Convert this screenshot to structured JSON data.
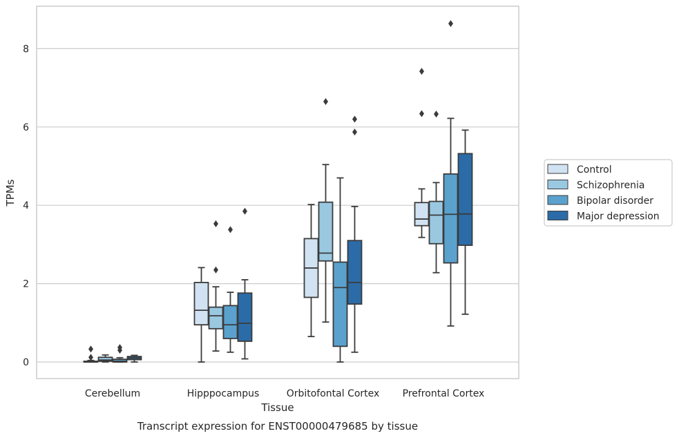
{
  "chart_data": {
    "type": "box",
    "xlabel": "Tissue",
    "ylabel": "TPMs",
    "caption": "Transcript expression for ENST00000479685 by tissue",
    "categories": [
      "Cerebellum",
      "Hipppocampus",
      "Orbitofontal Cortex",
      "Prefrontal Cortex"
    ],
    "ylim": [
      -0.42,
      9.1
    ],
    "yticks": [
      0,
      2,
      4,
      6,
      8
    ],
    "grid": true,
    "legend_position": "right",
    "series": [
      {
        "name": "Control",
        "color": "#d1e2f2",
        "boxes": [
          {
            "whislo": 0.0,
            "q1": 0.0,
            "med": 0.0,
            "q3": 0.02,
            "whishi": 0.04,
            "fliers": [
              0.33,
              0.12
            ]
          },
          {
            "whislo": 0.0,
            "q1": 0.95,
            "med": 1.32,
            "q3": 2.03,
            "whishi": 2.41,
            "fliers": []
          },
          {
            "whislo": 0.65,
            "q1": 1.65,
            "med": 2.4,
            "q3": 3.15,
            "whishi": 4.02,
            "fliers": []
          },
          {
            "whislo": 3.18,
            "q1": 3.48,
            "med": 3.65,
            "q3": 4.07,
            "whishi": 4.42,
            "fliers": [
              7.42,
              6.34
            ]
          }
        ]
      },
      {
        "name": "Schizophrenia",
        "color": "#9ac8e0",
        "boxes": [
          {
            "whislo": 0.0,
            "q1": 0.02,
            "med": 0.05,
            "q3": 0.12,
            "whishi": 0.18,
            "fliers": []
          },
          {
            "whislo": 0.28,
            "q1": 0.85,
            "med": 1.18,
            "q3": 1.4,
            "whishi": 1.92,
            "fliers": [
              3.53,
              2.35
            ]
          },
          {
            "whislo": 1.02,
            "q1": 2.58,
            "med": 2.78,
            "q3": 4.08,
            "whishi": 5.04,
            "fliers": [
              6.65
            ]
          },
          {
            "whislo": 2.28,
            "q1": 3.02,
            "med": 3.75,
            "q3": 4.1,
            "whishi": 4.58,
            "fliers": [
              6.33
            ]
          }
        ]
      },
      {
        "name": "Bipolar disorder",
        "color": "#5aa1cd",
        "boxes": [
          {
            "whislo": 0.0,
            "q1": 0.0,
            "med": 0.02,
            "q3": 0.07,
            "whishi": 0.11,
            "fliers": [
              0.37,
              0.3
            ]
          },
          {
            "whislo": 0.25,
            "q1": 0.6,
            "med": 0.95,
            "q3": 1.44,
            "whishi": 1.78,
            "fliers": [
              3.38
            ]
          },
          {
            "whislo": 0.0,
            "q1": 0.4,
            "med": 1.9,
            "q3": 2.55,
            "whishi": 4.7,
            "fliers": []
          },
          {
            "whislo": 0.92,
            "q1": 2.53,
            "med": 3.77,
            "q3": 4.8,
            "whishi": 6.22,
            "fliers": [
              8.64
            ]
          }
        ]
      },
      {
        "name": "Major depression",
        "color": "#2b6ca8",
        "boxes": [
          {
            "whislo": 0.0,
            "q1": 0.06,
            "med": 0.1,
            "q3": 0.14,
            "whishi": 0.17,
            "fliers": []
          },
          {
            "whislo": 0.08,
            "q1": 0.53,
            "med": 0.99,
            "q3": 1.76,
            "whishi": 2.1,
            "fliers": [
              3.85
            ]
          },
          {
            "whislo": 0.25,
            "q1": 1.48,
            "med": 2.03,
            "q3": 3.1,
            "whishi": 3.97,
            "fliers": [
              6.2,
              5.87
            ]
          },
          {
            "whislo": 1.22,
            "q1": 2.98,
            "med": 3.78,
            "q3": 5.32,
            "whishi": 5.92,
            "fliers": []
          }
        ]
      }
    ]
  },
  "colors": {
    "grid": "#cccccc",
    "frame": "#cccccc",
    "box_edge": "#3b3b3b",
    "text": "#262626"
  }
}
